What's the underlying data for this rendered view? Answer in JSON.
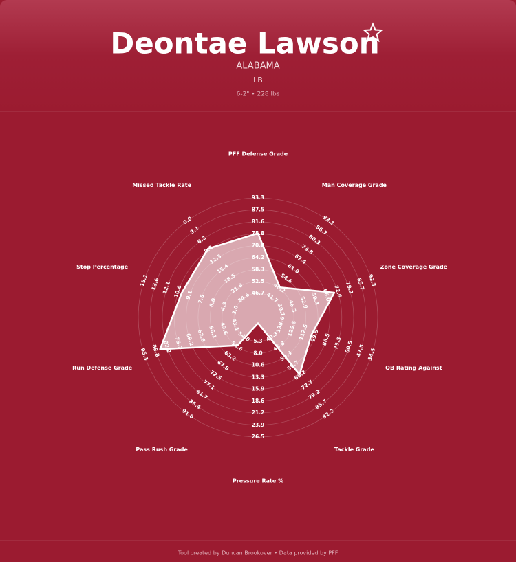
{
  "chart_data": {
    "type": "radar",
    "title": "Deontae Lawson",
    "subtitle": "ALABAMA",
    "position": "LB",
    "details": "6-2\" • 228 lbs",
    "footer": "Tool created by Duncan Brookover • Data provided by PFF",
    "axes": [
      {
        "name": "PFF Defense Grade",
        "range": [
          35.0,
          93.3
        ],
        "ticks": [
          46.7,
          52.5,
          58.3,
          64.2,
          {
            "value": 70,
            "label": "70.0"
          },
          75.8,
          81.6,
          87.5,
          93.3
        ]
      },
      {
        "name": "Man Coverage Grade",
        "range": [
          28.8,
          93.1
        ],
        "ticks": [
          41.7,
          48.2,
          54.6,
          {
            "value": 61,
            "label": "61.0"
          },
          67.4,
          73.8,
          80.3,
          86.7,
          93.1
        ]
      },
      {
        "name": "Zone Coverage Grade",
        "range": [
          26.5,
          92.3
        ],
        "ticks": [
          39.7,
          46.3,
          52.9,
          59.4,
          {
            "value": 66,
            "label": "66.0"
          },
          72.6,
          79.2,
          85.7,
          92.3
        ]
      },
      {
        "name": "QB Rating Against",
        "range": [
          164.6,
          34.5
        ],
        "ticks": [
          138.6,
          125.5,
          112.5,
          99.5,
          86.5,
          73.5,
          60.5,
          47.5,
          34.5
        ]
      },
      {
        "name": "Tackle Grade",
        "range": [
          27.3,
          92.2
        ],
        "ticks": [
          40.3,
          46.8,
          53.3,
          59.7,
          66.2,
          72.7,
          79.2,
          85.7,
          92.2
        ]
      },
      {
        "name": "Pressure Rate %",
        "range": [
          0,
          26.5
        ],
        "ticks": [
          5.3,
          {
            "value": 8,
            "label": "8.0"
          },
          10.6,
          13.3,
          15.9,
          18.6,
          21.2,
          23.9,
          26.5
        ]
      },
      {
        "name": "Pass Rush Grade",
        "range": [
          44.7,
          91.0
        ],
        "ticks": [
          {
            "value": 54,
            "label": "54.0"
          },
          58.6,
          63.2,
          67.8,
          72.5,
          77.1,
          81.7,
          86.4,
          {
            "value": 91,
            "label": "91.0"
          }
        ]
      },
      {
        "name": "Run Defense Grade",
        "range": [
          30.0,
          95.3
        ],
        "ticks": [
          43.1,
          49.6,
          56.1,
          62.6,
          69.2,
          75.7,
          82.2,
          88.8,
          95.3
        ]
      },
      {
        "name": "Stop Percentage",
        "range": [
          0,
          15.1
        ],
        "ticks": [
          {
            "value": 3,
            "label": "3.0"
          },
          4.5,
          {
            "value": 6,
            "label": "6.0"
          },
          7.5,
          9.1,
          10.6,
          12.1,
          13.6,
          15.1
        ]
      },
      {
        "name": "Missed Tackle Rate",
        "range": [
          30.8,
          0
        ],
        "ticks": [
          24.6,
          21.6,
          18.5,
          15.4,
          12.3,
          9.2,
          6.2,
          3.1,
          {
            "value": 0,
            "label": "0.0"
          }
        ]
      }
    ],
    "series": [
      {
        "color": "#ffffff",
        "values": [
          76.0,
          48.8,
          70.6,
          103.5,
          65.6,
          1.3,
          58.1,
          86.2,
          10.1,
          8.9
        ]
      }
    ]
  }
}
